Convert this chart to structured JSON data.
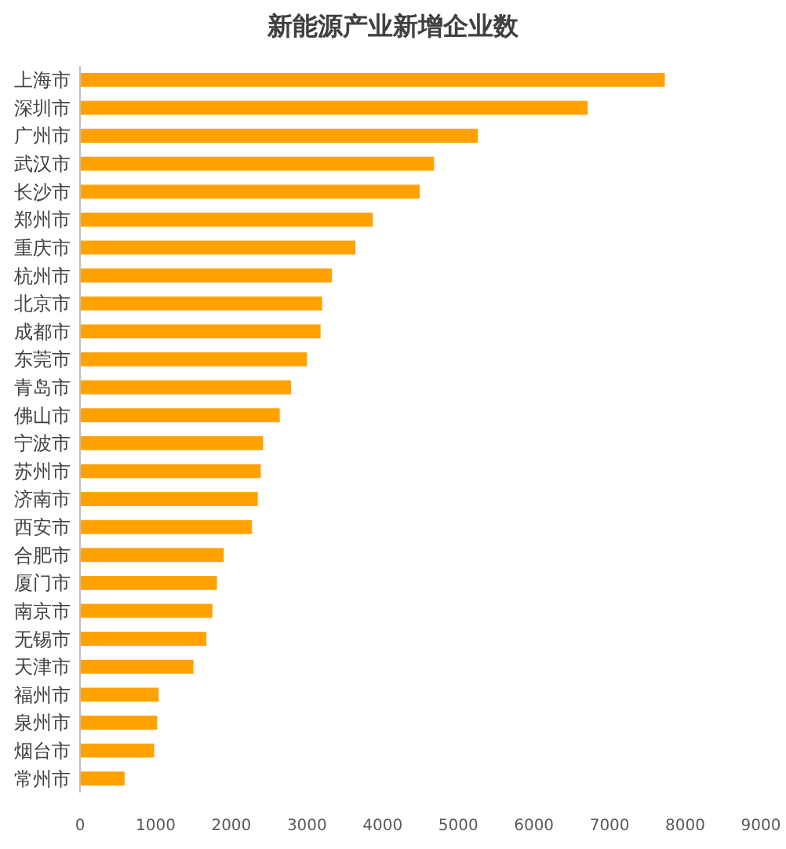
{
  "chart_data": {
    "type": "bar",
    "orientation": "horizontal",
    "title": "新能源产业新增企业数",
    "categories": [
      "上海市",
      "深圳市",
      "广州市",
      "武汉市",
      "长沙市",
      "郑州市",
      "重庆市",
      "杭州市",
      "北京市",
      "成都市",
      "东莞市",
      "青岛市",
      "佛山市",
      "宁波市",
      "苏州市",
      "济南市",
      "西安市",
      "合肥市",
      "厦门市",
      "南京市",
      "无锡市",
      "天津市",
      "福州市",
      "泉州市",
      "烟台市",
      "常州市"
    ],
    "values": [
      7730,
      6710,
      5260,
      4680,
      4490,
      3870,
      3640,
      3330,
      3200,
      3180,
      3000,
      2790,
      2640,
      2420,
      2390,
      2350,
      2270,
      1900,
      1810,
      1750,
      1670,
      1500,
      1040,
      1020,
      980,
      590
    ],
    "color": "#ffa200",
    "xlim": [
      0,
      9000
    ],
    "xticks": [
      0,
      1000,
      2000,
      3000,
      4000,
      5000,
      6000,
      7000,
      8000,
      9000
    ],
    "grid": false
  }
}
